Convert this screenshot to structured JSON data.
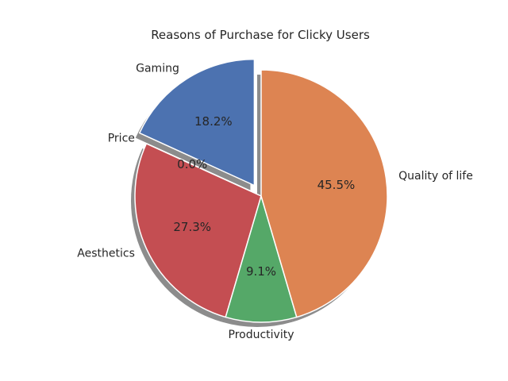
{
  "chart_data": {
    "type": "pie",
    "title": "Reasons of Purchase for Clicky Users",
    "slices": [
      {
        "label": "Gaming",
        "value": 18.2,
        "pct_label": "18.2%",
        "color": "#4c72b0",
        "exploded": true
      },
      {
        "label": "Price",
        "value": 0.0,
        "pct_label": "0.0%",
        "color": "#55a868",
        "exploded": false
      },
      {
        "label": "Aesthetics",
        "value": 27.3,
        "pct_label": "27.3%",
        "color": "#c44e52",
        "exploded": false
      },
      {
        "label": "Productivity",
        "value": 9.1,
        "pct_label": "9.1%",
        "color": "#55a868",
        "exploded": false
      },
      {
        "label": "Quality of life",
        "value": 45.5,
        "pct_label": "45.5%",
        "color": "#dd8452",
        "exploded": false
      }
    ],
    "start_angle_deg": 90,
    "direction": "counterclockwise",
    "shadow": true,
    "edge_color": "#ffffff"
  }
}
